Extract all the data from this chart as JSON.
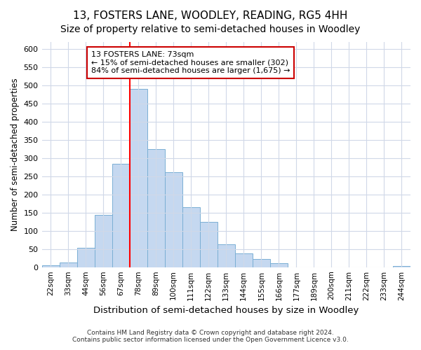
{
  "title": "13, FOSTERS LANE, WOODLEY, READING, RG5 4HH",
  "subtitle": "Size of property relative to semi-detached houses in Woodley",
  "xlabel": "Distribution of semi-detached houses by size in Woodley",
  "ylabel": "Number of semi-detached properties",
  "categories": [
    "22sqm",
    "33sqm",
    "44sqm",
    "56sqm",
    "67sqm",
    "78sqm",
    "89sqm",
    "100sqm",
    "111sqm",
    "122sqm",
    "133sqm",
    "144sqm",
    "155sqm",
    "166sqm",
    "177sqm",
    "189sqm",
    "200sqm",
    "211sqm",
    "222sqm",
    "233sqm",
    "244sqm"
  ],
  "values": [
    5,
    12,
    53,
    143,
    285,
    490,
    325,
    262,
    165,
    125,
    63,
    37,
    22,
    10,
    0,
    0,
    0,
    0,
    0,
    0,
    3
  ],
  "bar_color": "#c5d8f0",
  "bar_edge_color": "#7aafd4",
  "red_line_bar_index": 5,
  "annotation_line1": "13 FOSTERS LANE: 73sqm",
  "annotation_line2": "← 15% of semi-detached houses are smaller (302)",
  "annotation_line3": "84% of semi-detached houses are larger (1,675) →",
  "annotation_box_color": "#ffffff",
  "annotation_box_edge_color": "#cc0000",
  "ylim": [
    0,
    620
  ],
  "yticks": [
    0,
    50,
    100,
    150,
    200,
    250,
    300,
    350,
    400,
    450,
    500,
    550,
    600
  ],
  "footer_line1": "Contains HM Land Registry data © Crown copyright and database right 2024.",
  "footer_line2": "Contains public sector information licensed under the Open Government Licence v3.0.",
  "background_color": "#ffffff",
  "plot_background_color": "#ffffff",
  "grid_color": "#d0d8e8",
  "title_fontsize": 11,
  "subtitle_fontsize": 10
}
